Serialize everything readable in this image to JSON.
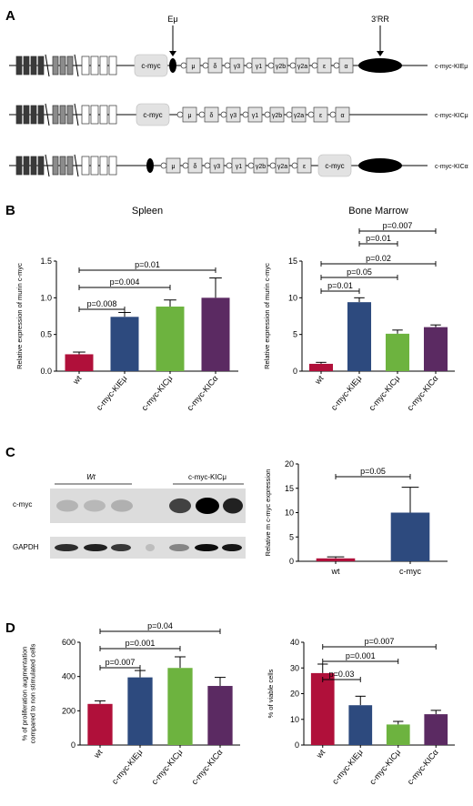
{
  "panels": {
    "A": "A",
    "B": "B",
    "C": "C",
    "D": "D"
  },
  "colors": {
    "wt": "#b0103a",
    "kiem": "#2d4a7e",
    "kicm": "#6db33f",
    "kica": "#5b2a62",
    "gene": "#e2e2e2",
    "dark": "#3a3a3a",
    "mid": "#8c8c8c"
  },
  "panel_a": {
    "labels": {
      "emu": "Eμ",
      "rr": "3'RR"
    },
    "constructs": [
      {
        "name": "c-myc-KIEμ",
        "myc": "c-myc",
        "regions": [
          "μ",
          "δ",
          "γ3",
          "γ1",
          "γ2b",
          "γ2a",
          "ε",
          "α"
        ]
      },
      {
        "name": "c-myc-KICμ",
        "myc": "c-myc",
        "regions": [
          "μ",
          "δ",
          "γ3",
          "γ1",
          "γ2b",
          "γ2a",
          "ε",
          "α"
        ]
      },
      {
        "name": "c-myc-KICα",
        "myc": "c-myc",
        "regions": [
          "μ",
          "δ",
          "γ3",
          "γ1",
          "γ2b",
          "γ2a",
          "ε"
        ]
      }
    ]
  },
  "blot": {
    "wt_label": "Wt",
    "myc_label": "c-myc-KICμ",
    "row_labels": [
      "c-myc",
      "GAPDH"
    ]
  },
  "chart_data": [
    {
      "type": "bar",
      "title": "Spleen",
      "categories": [
        "wt",
        "c-myc-KIEμ",
        "c-myc-KICμ",
        "c-myc-KICα"
      ],
      "values": [
        0.23,
        0.74,
        0.88,
        1.0
      ],
      "errors": [
        0.03,
        0.06,
        0.09,
        0.27
      ],
      "ylabel": "Relative expression of murin c-myc",
      "ylim": [
        0,
        1.5
      ],
      "yticks": [
        "0.0",
        "0.5",
        "1.0",
        "1.5"
      ],
      "annotations": [
        {
          "from": 0,
          "to": 1,
          "label": "p=0.008"
        },
        {
          "from": 0,
          "to": 2,
          "label": "p=0.004"
        },
        {
          "from": 0,
          "to": 3,
          "label": "p=0.01"
        }
      ]
    },
    {
      "type": "bar",
      "title": "Bone Marrow",
      "categories": [
        "wt",
        "c-myc-KIEμ",
        "c-myc-KICμ",
        "c-myc-KICα"
      ],
      "values": [
        1.0,
        9.4,
        5.1,
        6.0
      ],
      "errors": [
        0.2,
        0.6,
        0.5,
        0.3
      ],
      "ylabel": "Relative expression of murin c-myc",
      "ylim": [
        0,
        15
      ],
      "yticks": [
        "0",
        "5",
        "10",
        "15"
      ],
      "annotations": [
        {
          "from": 0,
          "to": 1,
          "label": "p=0.01"
        },
        {
          "from": 0,
          "to": 2,
          "label": "p=0.05"
        },
        {
          "from": 0,
          "to": 3,
          "label": "p=0.02"
        },
        {
          "from": 1,
          "to": 2,
          "label": "p=0.01"
        },
        {
          "from": 1,
          "to": 3,
          "label": "p=0.007"
        }
      ]
    },
    {
      "type": "bar",
      "title": "",
      "categories": [
        "wt",
        "c-myc"
      ],
      "values": [
        0.6,
        10.0
      ],
      "errors": [
        0.3,
        5.2
      ],
      "ylabel": "Relative m c-myc expression",
      "ylim": [
        0,
        20
      ],
      "yticks": [
        "0",
        "5",
        "10",
        "15",
        "20"
      ],
      "annotations": [
        {
          "from": 0,
          "to": 1,
          "label": "p=0.05"
        }
      ]
    },
    {
      "type": "bar",
      "title": "",
      "categories": [
        "wt",
        "c-myc-KIEμ",
        "c-myc-KICμ",
        "c-myc-KICα"
      ],
      "values": [
        240,
        395,
        450,
        345
      ],
      "errors": [
        18,
        40,
        65,
        50
      ],
      "ylabel": "% of proliferation augmentation compared to non stimulated cells",
      "ylabel_lines": [
        "% of proliferation augmentation",
        "compared to non stimulated cells"
      ],
      "ylim": [
        0,
        600
      ],
      "yticks": [
        "0",
        "200",
        "400",
        "600"
      ],
      "annotations": [
        {
          "from": 0,
          "to": 1,
          "label": "p=0.007"
        },
        {
          "from": 0,
          "to": 2,
          "label": "p=0.001"
        },
        {
          "from": 0,
          "to": 3,
          "label": "p=0.04"
        }
      ]
    },
    {
      "type": "bar",
      "title": "",
      "categories": [
        "wt",
        "c-myc-KIEμ",
        "c-myc-KICμ",
        "c-myc-KICα"
      ],
      "values": [
        28,
        15.5,
        8,
        12
      ],
      "errors": [
        3.5,
        3.5,
        1.2,
        1.5
      ],
      "ylabel": "% of viable cells",
      "ylim": [
        0,
        40
      ],
      "yticks": [
        "0",
        "10",
        "20",
        "30",
        "40"
      ],
      "annotations": [
        {
          "from": 0,
          "to": 1,
          "label": "p=0.03"
        },
        {
          "from": 0,
          "to": 2,
          "label": "p=0.001"
        },
        {
          "from": 0,
          "to": 3,
          "label": "p=0.007"
        }
      ]
    }
  ]
}
